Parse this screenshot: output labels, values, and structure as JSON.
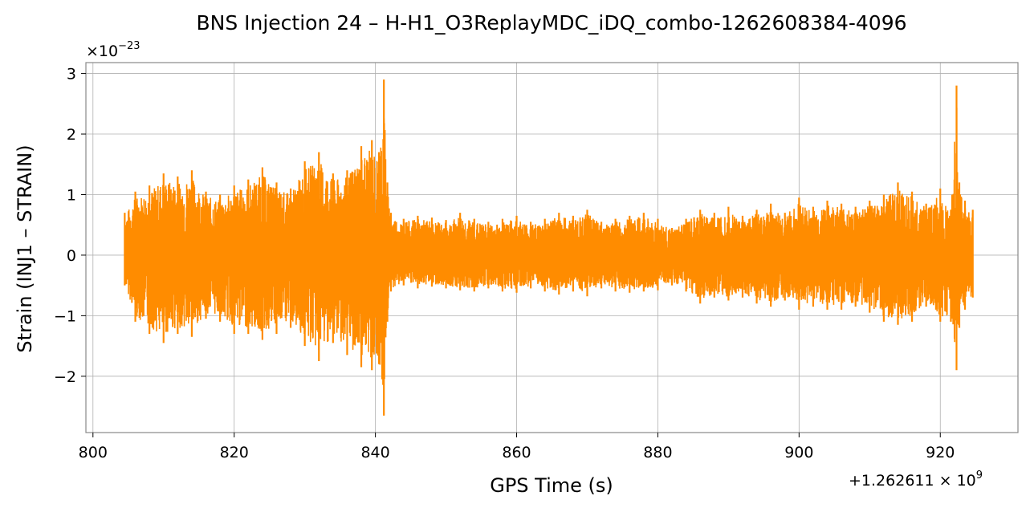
{
  "chart_data": {
    "type": "line",
    "title": "BNS Injection 24 – H-H1_O3ReplayMDC_iDQ_combo-1262608384-4096",
    "xlabel": "GPS Time (s)",
    "ylabel": "Strain (INJ1 – STRAIN)",
    "x_offset_label": "+1.262611 × 10",
    "x_offset_exponent": "9",
    "y_scale_label": "×10",
    "y_scale_exponent": "−23",
    "xlim": [
      799,
      931
    ],
    "ylim": [
      -2.93,
      3.18
    ],
    "x_ticks": [
      800,
      820,
      840,
      860,
      880,
      900,
      920
    ],
    "x_tick_labels": [
      "800",
      "820",
      "840",
      "860",
      "880",
      "900",
      "920"
    ],
    "y_ticks": [
      -2,
      -1,
      0,
      1,
      2,
      3
    ],
    "y_tick_labels": [
      "−2",
      "−1",
      "0",
      "1",
      "2",
      "3"
    ],
    "grid": true,
    "series": [
      {
        "color": "#ff8c00",
        "x": [
          804.5,
          806,
          808,
          810,
          812,
          814,
          816,
          818,
          820,
          822,
          824,
          826,
          828,
          830,
          832,
          834,
          836,
          838,
          839.5,
          840.5,
          841.2,
          841.7,
          842.2,
          844,
          846,
          848,
          850,
          852,
          854,
          856,
          858,
          860,
          862,
          864,
          866,
          868,
          870,
          872,
          874,
          876,
          878,
          880,
          882,
          884,
          886,
          888,
          890,
          892,
          894,
          896,
          898,
          900,
          902,
          904,
          906,
          908,
          910,
          912,
          914,
          916,
          918,
          920,
          921.5,
          922.3,
          922.7,
          923.5,
          924.6
        ],
        "upper": [
          0.7,
          1.05,
          1.15,
          1.35,
          1.3,
          1.4,
          1.05,
          1.0,
          1.15,
          1.25,
          1.45,
          1.2,
          1.1,
          1.55,
          1.7,
          1.35,
          1.4,
          1.8,
          1.9,
          1.7,
          2.9,
          1.2,
          0.7,
          0.6,
          0.65,
          0.62,
          0.58,
          0.7,
          0.6,
          0.55,
          0.6,
          0.65,
          0.55,
          0.6,
          0.7,
          0.65,
          0.75,
          0.55,
          0.6,
          0.65,
          0.7,
          0.6,
          0.45,
          0.6,
          0.75,
          0.7,
          0.8,
          0.65,
          0.75,
          0.85,
          0.7,
          0.95,
          0.8,
          0.9,
          0.85,
          0.8,
          0.9,
          1.0,
          1.2,
          1.05,
          0.85,
          1.1,
          0.75,
          2.8,
          1.2,
          0.9,
          0.75
        ],
        "lower": [
          -0.5,
          -1.1,
          -1.3,
          -1.45,
          -1.3,
          -1.35,
          -1.05,
          -1.1,
          -1.3,
          -1.3,
          -1.4,
          -1.3,
          -1.2,
          -1.5,
          -1.75,
          -1.45,
          -1.65,
          -1.85,
          -1.9,
          -1.8,
          -2.65,
          -1.1,
          -0.6,
          -0.5,
          -0.55,
          -0.52,
          -0.55,
          -0.58,
          -0.6,
          -0.55,
          -0.6,
          -0.62,
          -0.55,
          -0.6,
          -0.65,
          -0.6,
          -0.68,
          -0.55,
          -0.6,
          -0.62,
          -0.6,
          -0.58,
          -0.5,
          -0.6,
          -0.8,
          -0.7,
          -0.75,
          -0.7,
          -0.8,
          -0.85,
          -0.75,
          -0.9,
          -0.85,
          -0.9,
          -0.9,
          -0.85,
          -0.95,
          -1.1,
          -1.15,
          -1.1,
          -0.85,
          -1.1,
          -1.1,
          -1.9,
          -1.2,
          -0.9,
          -0.7
        ]
      }
    ]
  }
}
